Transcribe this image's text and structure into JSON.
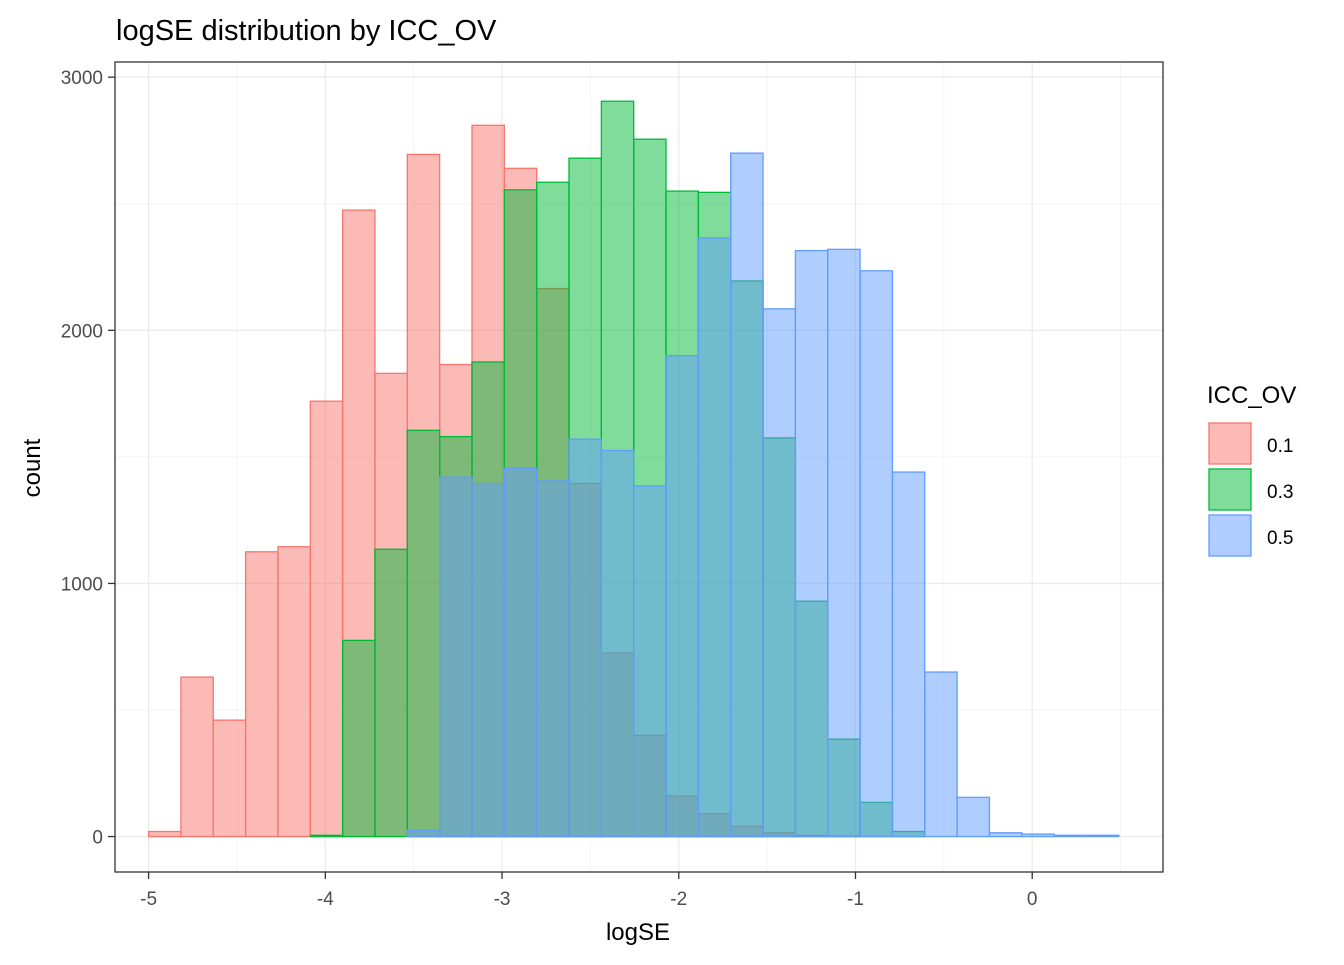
{
  "chart_data": {
    "type": "bar",
    "subtype": "overlapping-histogram",
    "title": "logSE distribution by ICC_OV",
    "xlabel": "logSE",
    "ylabel": "count",
    "xlim": [
      -5.19,
      0.74
    ],
    "ylim": [
      -140,
      3060
    ],
    "xticks": [
      -5,
      -4,
      -3,
      -2,
      -1,
      0
    ],
    "xtick_labels": [
      "-5",
      "-4",
      "-3",
      "-2",
      "-1",
      "0"
    ],
    "yticks": [
      0,
      1000,
      2000,
      3000
    ],
    "ytick_labels": [
      "0",
      "1000",
      "2000",
      "3000"
    ],
    "minor_xticks": [
      -4.5,
      -3.5,
      -2.5,
      -1.5,
      -0.5,
      0.5
    ],
    "minor_yticks": [
      500,
      1500,
      2500
    ],
    "grid": true,
    "bar_opacity": 0.5,
    "legend": {
      "title": "ICC_OV",
      "position": "right",
      "entries": [
        "0.1",
        "0.3",
        "0.5"
      ]
    },
    "bin_edges": [
      -5.0,
      -4.817,
      -4.634,
      -4.451,
      -4.268,
      -4.085,
      -3.902,
      -3.719,
      -3.536,
      -3.353,
      -3.17,
      -2.987,
      -2.804,
      -2.621,
      -2.438,
      -2.255,
      -2.072,
      -1.889,
      -1.706,
      -1.523,
      -1.34,
      -1.157,
      -0.974,
      -0.791,
      -0.608,
      -0.425,
      -0.242,
      -0.059,
      0.124,
      0.307,
      0.49
    ],
    "series": [
      {
        "name": "0.1",
        "color": "#F8766D",
        "values": [
          20,
          630,
          460,
          1125,
          1145,
          1720,
          2475,
          1830,
          2695,
          1865,
          2810,
          2640,
          2165,
          1395,
          725,
          400,
          160,
          90,
          40,
          15,
          5,
          2,
          0,
          0,
          0,
          0,
          0,
          0,
          0,
          0
        ]
      },
      {
        "name": "0.3",
        "color": "#00BA38",
        "values": [
          0,
          0,
          0,
          0,
          0,
          5,
          775,
          1135,
          1605,
          1580,
          1875,
          2555,
          2585,
          2680,
          2905,
          2755,
          2550,
          2545,
          2195,
          1575,
          930,
          385,
          135,
          20,
          0,
          0,
          0,
          0,
          0,
          0
        ]
      },
      {
        "name": "0.5",
        "color": "#619CFF",
        "values": [
          0,
          0,
          0,
          0,
          0,
          0,
          0,
          0,
          25,
          1420,
          1395,
          1455,
          1405,
          1570,
          1525,
          1385,
          1900,
          2365,
          2700,
          2085,
          2315,
          2320,
          2235,
          1440,
          650,
          155,
          15,
          10,
          5,
          5
        ]
      }
    ]
  },
  "colors": {
    "panel_border": "#333333",
    "grid_major": "#EBEBEB",
    "grid_minor": "#F4F4F4",
    "tick_text": "#4D4D4D",
    "axis_title": "#000000"
  }
}
